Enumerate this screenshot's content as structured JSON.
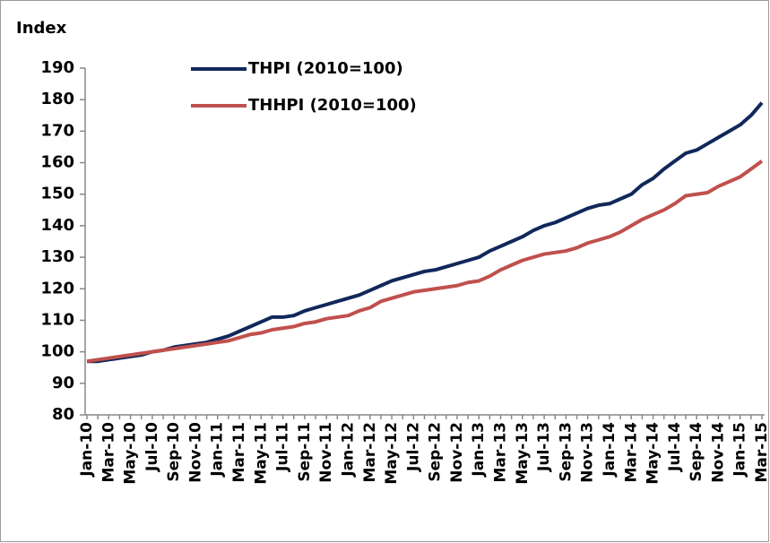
{
  "chart_data": {
    "type": "line",
    "y_label": "Index",
    "categories": [
      "Jan-10",
      null,
      "Mar-10",
      null,
      "May-10",
      null,
      "Jul-10",
      null,
      "Sep-10",
      null,
      "Nov-10",
      null,
      "Jan-11",
      null,
      "Mar-11",
      null,
      "May-11",
      null,
      "Jul-11",
      null,
      "Sep-11",
      null,
      "Nov-11",
      null,
      "Jan-12",
      null,
      "Mar-12",
      null,
      "May-12",
      null,
      "Jul-12",
      null,
      "Sep-12",
      null,
      "Nov-12",
      null,
      "Jan-13",
      null,
      "Mar-13",
      null,
      "May-13",
      null,
      "Jul-13",
      null,
      "Sep-13",
      null,
      "Nov-13",
      null,
      "Jan-14",
      null,
      "Mar-14",
      null,
      "May-14",
      null,
      "Jul-14",
      null,
      "Sep-14",
      null,
      "Nov-14",
      null,
      "Jan-15",
      null,
      "Mar-15"
    ],
    "series": [
      {
        "name": "THPI (2010=100)",
        "color": "#10285a",
        "values": [
          97,
          97,
          97.5,
          98,
          98.5,
          99,
          100,
          100.5,
          101.5,
          102,
          102.5,
          103,
          104,
          105,
          106.5,
          108,
          109.5,
          111,
          111,
          111.5,
          113,
          114,
          115,
          116,
          117,
          118,
          119.5,
          121,
          122.5,
          123.5,
          124.5,
          125.5,
          126,
          127,
          128,
          129,
          130,
          132,
          133.5,
          135,
          136.5,
          138.5,
          140,
          141,
          142.5,
          144,
          145.5,
          146.5,
          147,
          148.5,
          150,
          153,
          155,
          158,
          160.5,
          163,
          164,
          166,
          168,
          170,
          172,
          175,
          179
        ]
      },
      {
        "name": "THHPI (2010=100)",
        "color": "#c0504d",
        "values": [
          97,
          97.5,
          98,
          98.5,
          99,
          99.5,
          100,
          100.5,
          101,
          101.5,
          102,
          102.5,
          103,
          103.5,
          104.5,
          105.5,
          106,
          107,
          107.5,
          108,
          109,
          109.5,
          110.5,
          111,
          111.5,
          113,
          114,
          116,
          117,
          118,
          119,
          119.5,
          120,
          120.5,
          121,
          122,
          122.5,
          124,
          126,
          127.5,
          129,
          130,
          131,
          131.5,
          132,
          133,
          134.5,
          135.5,
          136.5,
          138,
          140,
          142,
          143.5,
          145,
          147,
          149.5,
          150,
          150.5,
          152.5,
          154,
          155.5,
          158,
          160.5
        ]
      }
    ],
    "ylim": [
      80,
      190
    ],
    "yticks": [
      80,
      90,
      100,
      110,
      120,
      130,
      140,
      150,
      160,
      170,
      180,
      190
    ],
    "grid": false,
    "legend": "upper left"
  }
}
